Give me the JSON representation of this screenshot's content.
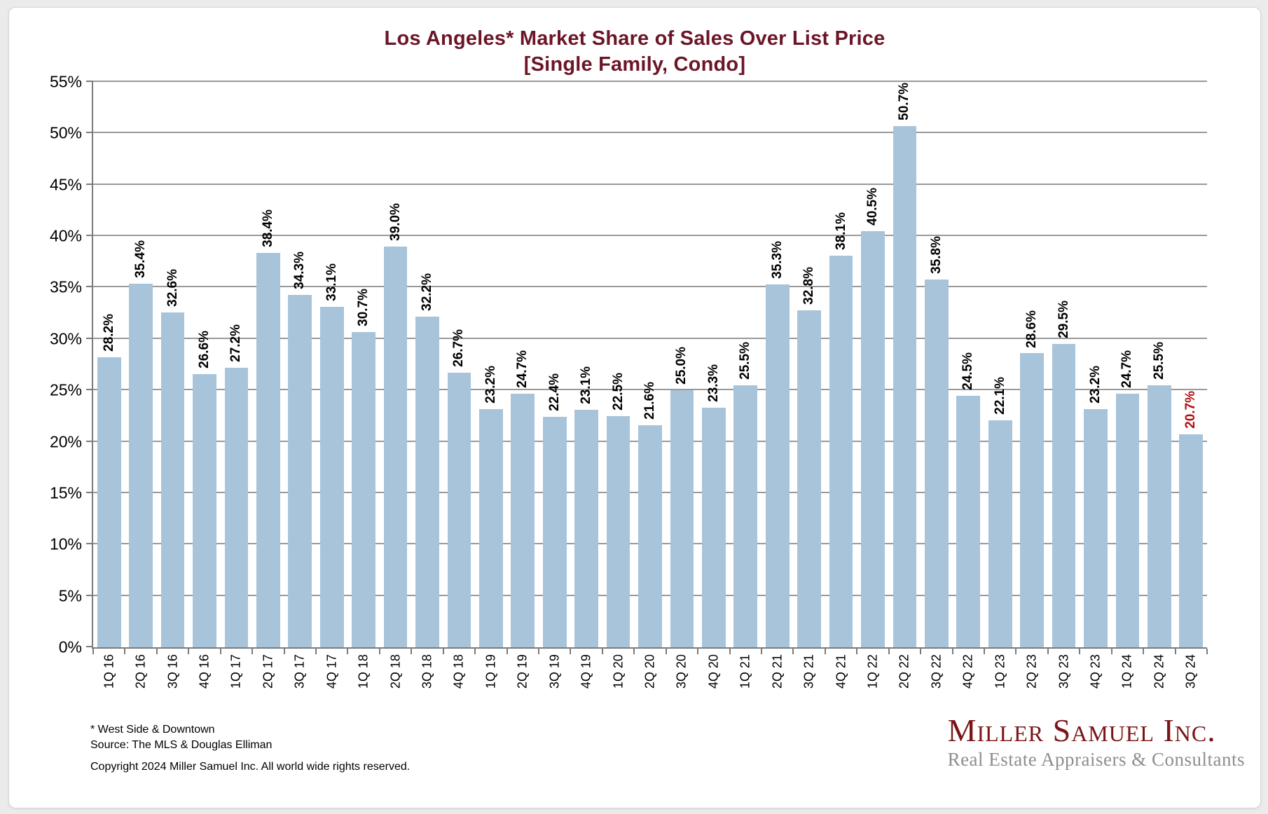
{
  "title": {
    "line1": "Los Angeles* Market Share of Sales Over List Price",
    "line2": "[Single Family, Condo]"
  },
  "chart_data": {
    "type": "bar",
    "title": "Los Angeles* Market Share of Sales Over List Price [Single Family, Condo]",
    "categories": [
      "1Q 16",
      "2Q 16",
      "3Q 16",
      "4Q 16",
      "1Q 17",
      "2Q 17",
      "3Q 17",
      "4Q 17",
      "1Q 18",
      "2Q 18",
      "3Q 18",
      "4Q 18",
      "1Q 19",
      "2Q 19",
      "3Q 19",
      "4Q 19",
      "1Q 20",
      "2Q 20",
      "3Q 20",
      "4Q 20",
      "1Q 21",
      "2Q 21",
      "3Q 21",
      "4Q 21",
      "1Q 22",
      "2Q 22",
      "3Q 22",
      "4Q 22",
      "1Q 23",
      "2Q 23",
      "3Q 23",
      "4Q 23",
      "1Q 24",
      "2Q 24",
      "3Q 24"
    ],
    "values": [
      28.2,
      35.4,
      32.6,
      26.6,
      27.2,
      38.4,
      34.3,
      33.1,
      30.7,
      39.0,
      32.2,
      26.7,
      23.2,
      24.7,
      22.4,
      23.1,
      22.5,
      21.6,
      25.0,
      23.3,
      25.5,
      35.3,
      32.8,
      38.1,
      40.5,
      50.7,
      35.8,
      24.5,
      22.1,
      28.6,
      29.5,
      23.2,
      24.7,
      25.5,
      20.7
    ],
    "value_suffix": "%",
    "xlabel": "",
    "ylabel": "",
    "ylim": [
      0,
      55
    ],
    "ytick_step": 5,
    "grid": true,
    "legend": "none",
    "bar_color": "#a8c4da",
    "label_color": "#000000",
    "last_label_color": "#b00e11"
  },
  "footnotes": {
    "asterisk": "* West Side & Downtown",
    "source": "Source: The MLS & Douglas Elliman",
    "copyright": "Copyright 2024 Miller Samuel Inc.  All world wide rights reserved."
  },
  "logo": {
    "name": "Miller Samuel Inc.",
    "tagline": "Real Estate Appraisers & Consultants"
  }
}
